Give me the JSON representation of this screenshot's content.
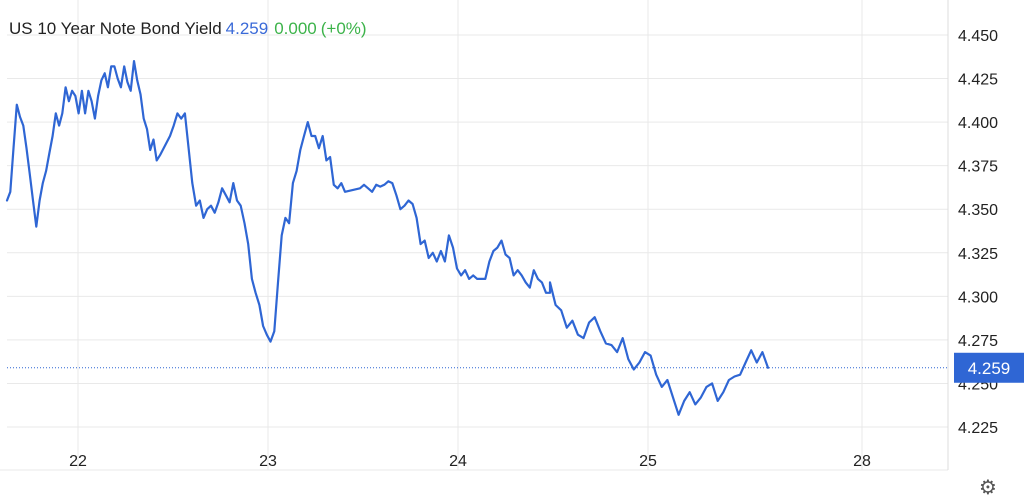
{
  "header": {
    "title": "US 10 Year Note Bond Yield",
    "last_value": "4.259",
    "change": "0.000",
    "change_pct": "(+0%)"
  },
  "colors": {
    "line": "#2f66d4",
    "last_value_text": "#3a6ad8",
    "change_text": "#3cb34a",
    "grid": "#e9e9e9",
    "badge": "#2f66d4"
  },
  "settings_icon": "gear-icon",
  "chart_data": {
    "type": "line",
    "title": "US 10 Year Note Bond Yield",
    "xlabel": "",
    "ylabel": "",
    "x_tick_labels": [
      "22",
      "23",
      "24",
      "25",
      "28"
    ],
    "y_tick_labels": [
      "4.450",
      "4.425",
      "4.400",
      "4.375",
      "4.350",
      "4.325",
      "4.300",
      "4.275",
      "4.250",
      "4.225"
    ],
    "ylim": [
      4.208,
      4.465
    ],
    "grid": true,
    "last_price_line": 4.259,
    "last_price_label": "4.259",
    "days": [
      {
        "label": "22",
        "values": [
          4.355,
          4.36,
          4.385,
          4.41,
          4.403,
          4.398,
          4.385,
          4.37,
          4.355,
          4.34,
          4.355,
          4.365,
          4.372,
          4.382,
          4.392,
          4.405,
          4.398,
          4.405,
          4.42,
          4.412,
          4.418,
          4.415,
          4.405,
          4.418,
          4.405,
          4.418,
          4.412,
          4.402,
          4.415,
          4.424,
          4.428,
          4.42,
          4.432,
          4.432,
          4.425,
          4.42,
          4.432,
          4.423,
          4.418,
          4.435,
          4.424,
          4.416,
          4.402,
          4.396,
          4.384,
          4.39,
          4.378,
          4.381
        ]
      },
      {
        "label": "23",
        "values": [
          4.392,
          4.398,
          4.405,
          4.402,
          4.405,
          4.385,
          4.365,
          4.352,
          4.355,
          4.345,
          4.35,
          4.352,
          4.348,
          4.354,
          4.362,
          4.358,
          4.354,
          4.365,
          4.355,
          4.352,
          4.342,
          4.33,
          4.31,
          4.302,
          4.295,
          4.283,
          4.278,
          4.274,
          4.28,
          4.308,
          4.335,
          4.345,
          4.342,
          4.365,
          4.372,
          4.384,
          4.392,
          4.4,
          4.392,
          4.392,
          4.385,
          4.392,
          4.378,
          4.38,
          4.364,
          4.362,
          4.365,
          4.36
        ]
      },
      {
        "label": "24",
        "values": [
          4.362,
          4.364,
          4.362,
          4.36,
          4.364,
          4.363,
          4.364,
          4.366,
          4.365,
          4.358,
          4.35,
          4.352,
          4.355,
          4.353,
          4.345,
          4.33,
          4.332,
          4.322,
          4.325,
          4.32,
          4.326,
          4.32,
          4.335,
          4.328,
          4.316,
          4.312,
          4.315,
          4.31,
          4.312,
          4.31,
          4.31,
          4.31,
          4.32,
          4.326,
          4.328,
          4.332,
          4.324,
          4.322,
          4.312,
          4.315,
          4.312,
          4.308,
          4.305,
          4.315,
          4.31,
          4.308,
          4.302,
          4.302
        ]
      },
      {
        "label": "25",
        "values": [
          4.308,
          4.295,
          4.292,
          4.282,
          4.286,
          4.278,
          4.276,
          4.285,
          4.288,
          4.28,
          4.273,
          4.272,
          4.268,
          4.276,
          4.264,
          4.258,
          4.262,
          4.268,
          4.266,
          4.255,
          4.248,
          4.252,
          4.242,
          4.232,
          4.24,
          4.245,
          4.238,
          4.242,
          4.248,
          4.25,
          4.24,
          4.245,
          4.252,
          4.254,
          4.255,
          4.262,
          4.269,
          4.262,
          4.268,
          4.259
        ]
      }
    ]
  }
}
